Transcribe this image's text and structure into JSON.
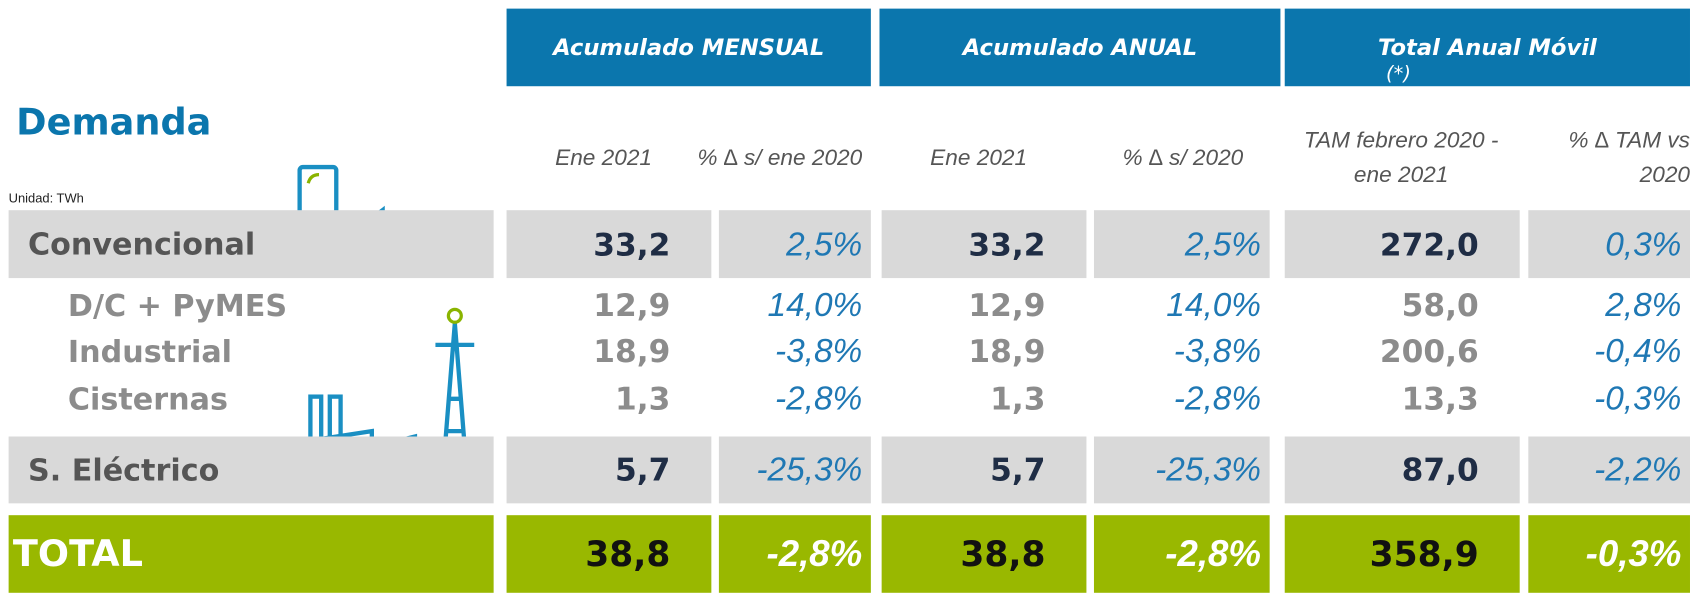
{
  "title": "Demanda",
  "unit": "Unidad: TWh",
  "header": {
    "groups": [
      "Acumulado MENSUAL",
      "Acumulado ANUAL",
      "Total Anual Móvil"
    ],
    "note": "(*)"
  },
  "subheaders": [
    "Ene 2021",
    "% ∆ s/ ene 2020",
    "Ene 2021",
    "% ∆ s/ 2020",
    "TAM febrero 2020 - ene 2021",
    "% ∆ TAM vs 2020"
  ],
  "table": {
    "rows": [
      {
        "label": "Convencional",
        "values": [
          "33,2",
          "2,5%",
          "33,2",
          "2,5%",
          "272,0",
          "0,3%"
        ]
      },
      {
        "label": "D/C + PyMES",
        "values": [
          "12,9",
          "14,0%",
          "12,9",
          "14,0%",
          "58,0",
          "2,8%"
        ]
      },
      {
        "label": "Industrial",
        "values": [
          "18,9",
          "-3,8%",
          "18,9",
          "-3,8%",
          "200,6",
          "-0,4%"
        ]
      },
      {
        "label": "Cisternas",
        "values": [
          "1,3",
          "-2,8%",
          "1,3",
          "-2,8%",
          "13,3",
          "-0,3%"
        ]
      },
      {
        "label": "S. Eléctrico",
        "values": [
          "5,7",
          "-25,3%",
          "5,7",
          "-25,3%",
          "87,0",
          "-2,2%"
        ]
      },
      {
        "label": "TOTAL",
        "values": [
          "38,8",
          "-2,8%",
          "38,8",
          "-2,8%",
          "358,9",
          "-0,3%"
        ]
      }
    ]
  }
}
